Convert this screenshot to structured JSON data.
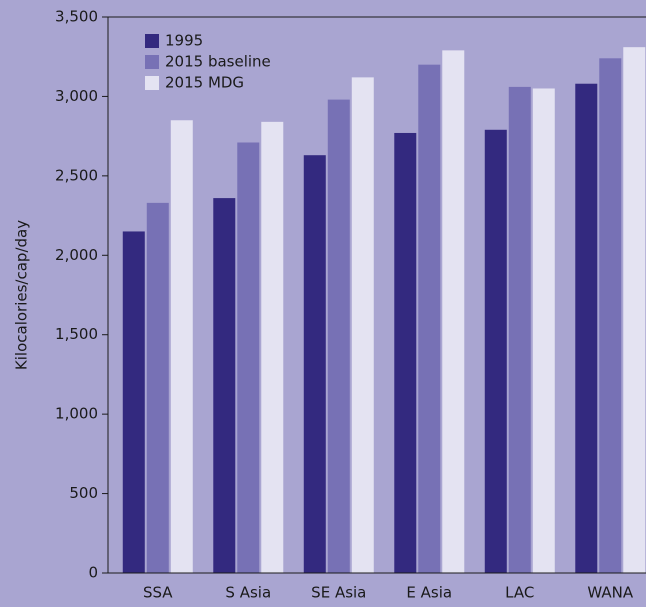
{
  "chart_data": {
    "type": "bar",
    "y_label": "Kilocalories/cap/day",
    "categories": [
      "SSA",
      "S Asia",
      "SE Asia",
      "E Asia",
      "LAC",
      "WANA"
    ],
    "series": [
      {
        "name": "1995",
        "color": "#33297f",
        "values": [
          2150,
          2360,
          2630,
          2770,
          2790,
          3080
        ]
      },
      {
        "name": "2015 baseline",
        "color": "#7771b5",
        "values": [
          2330,
          2710,
          2980,
          3200,
          3060,
          3240
        ]
      },
      {
        "name": "2015 MDG",
        "color": "#e4e3f2",
        "values": [
          2850,
          2840,
          3120,
          3290,
          3050,
          3310
        ]
      }
    ],
    "ylim": [
      0,
      3500
    ],
    "yticks": [
      0,
      500,
      {
        "value": 1000,
        "label": "1,000"
      },
      {
        "value": 1500,
        "label": "1,500"
      },
      {
        "value": 2000,
        "label": "2,000"
      },
      {
        "value": 2500,
        "label": "2,500"
      },
      {
        "value": 3000,
        "label": "3,000"
      },
      {
        "value": 3500,
        "label": "3,500"
      }
    ],
    "legend": "top-left"
  }
}
